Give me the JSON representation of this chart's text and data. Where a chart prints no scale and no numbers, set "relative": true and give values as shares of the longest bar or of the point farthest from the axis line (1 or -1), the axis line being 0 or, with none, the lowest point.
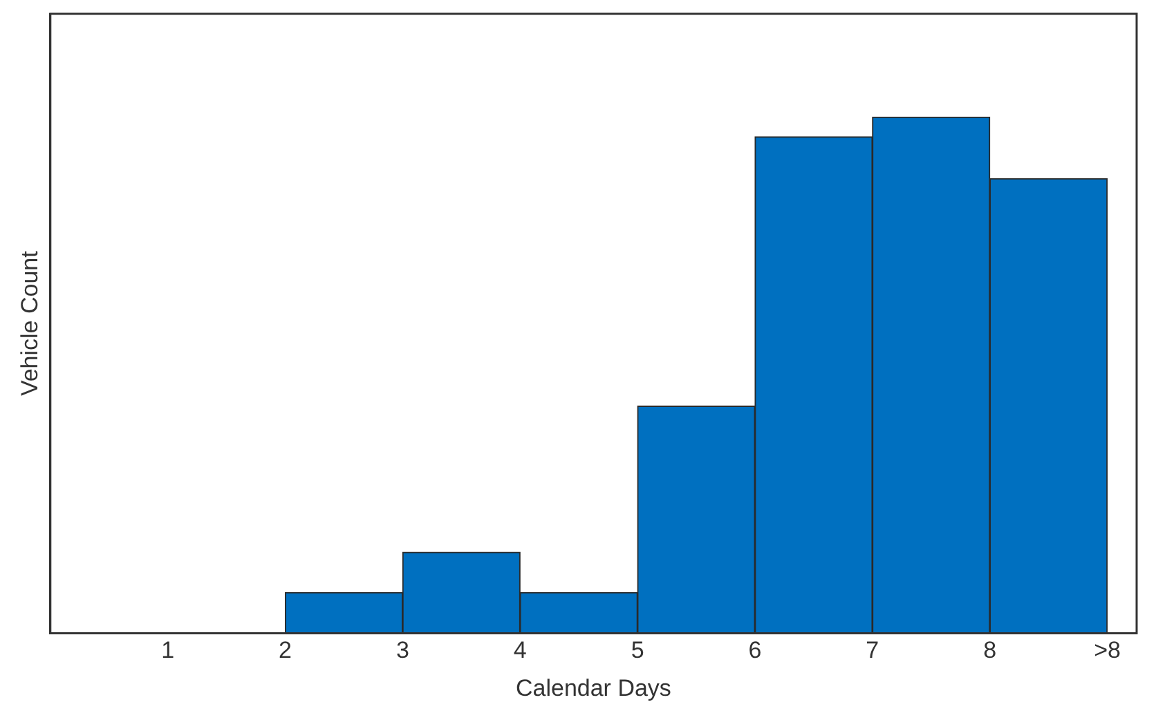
{
  "chart_data": {
    "type": "bar",
    "xlabel": "Calendar Days",
    "ylabel": "Vehicle Count",
    "relative": true,
    "x": [
      2.5,
      3.5,
      4.5,
      5.5,
      6.5,
      7.5,
      8.5
    ],
    "values": [
      0.079,
      0.157,
      0.079,
      0.44,
      0.962,
      1,
      0.881
    ],
    "color": "#0070c0",
    "xlim": [
      0,
      9.25
    ],
    "xticks": [
      {
        "value": 1,
        "label": "1"
      },
      {
        "value": 2,
        "label": "2"
      },
      {
        "value": 3,
        "label": "3"
      },
      {
        "value": 4,
        "label": "4"
      },
      {
        "value": 5,
        "label": "5"
      },
      {
        "value": 6,
        "label": "6"
      },
      {
        "value": 7,
        "label": "7"
      },
      {
        "value": 8,
        "label": "8"
      },
      {
        "value": 9,
        "label": ">8"
      }
    ],
    "grid": false,
    "legend": false
  }
}
